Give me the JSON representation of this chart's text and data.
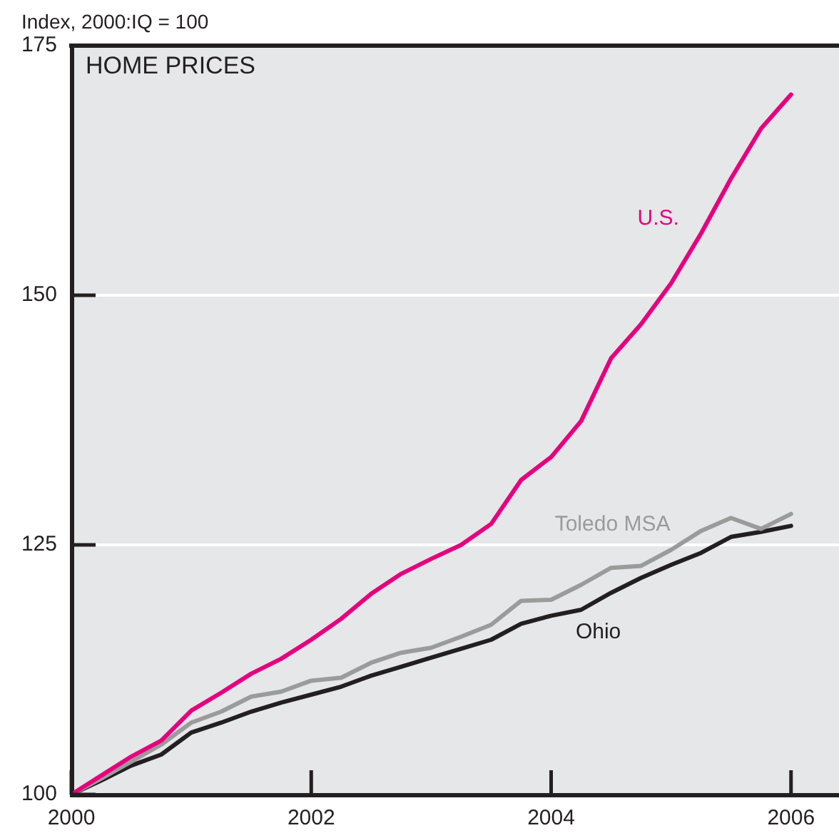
{
  "chart_data": {
    "type": "line",
    "title": "HOME PRICES",
    "ylabel": "Index, 2000:IQ = 100",
    "x": [
      2000,
      2000.25,
      2000.5,
      2000.75,
      2001,
      2001.25,
      2001.5,
      2001.75,
      2002,
      2002.25,
      2002.5,
      2002.75,
      2003,
      2003.25,
      2003.5,
      2003.75,
      2004,
      2004.25,
      2004.5,
      2004.75,
      2005,
      2005.25,
      2005.5,
      2005.75,
      2006
    ],
    "series": [
      {
        "name": "U.S.",
        "color": "#e6007e",
        "values": [
          100,
          101.9,
          103.8,
          105.4,
          108.4,
          110.2,
          112.1,
          113.6,
          115.5,
          117.6,
          120.1,
          122.1,
          123.6,
          125,
          127.1,
          131.5,
          133.8,
          137.4,
          143.7,
          147.1,
          151.2,
          156.2,
          161.7,
          166.7,
          170.1
        ]
      },
      {
        "name": "Toledo MSA",
        "color": "#9b9b9b",
        "values": [
          100,
          101.6,
          103.3,
          105,
          107.2,
          108.3,
          109.8,
          110.3,
          111.4,
          111.7,
          113.2,
          114.2,
          114.7,
          115.8,
          117,
          119.4,
          119.5,
          121,
          122.7,
          122.9,
          124.5,
          126.4,
          127.7,
          126.6,
          128.1
        ]
      },
      {
        "name": "Ohio",
        "color": "#231f20",
        "values": [
          100,
          101.4,
          102.9,
          104,
          106.2,
          107.2,
          108.3,
          109.2,
          110,
          110.8,
          111.9,
          112.8,
          113.7,
          114.6,
          115.5,
          117.1,
          117.9,
          118.5,
          120.2,
          121.7,
          123,
          124.2,
          125.8,
          126.3,
          126.9
        ]
      }
    ],
    "xlim": [
      2000,
      2006.4
    ],
    "xticks": [
      2000,
      2002,
      2004,
      2006
    ],
    "ylim": [
      100,
      175
    ],
    "yticks": [
      100,
      125,
      150,
      175
    ],
    "grid": "y",
    "marker": "none",
    "line_style": "solid"
  }
}
